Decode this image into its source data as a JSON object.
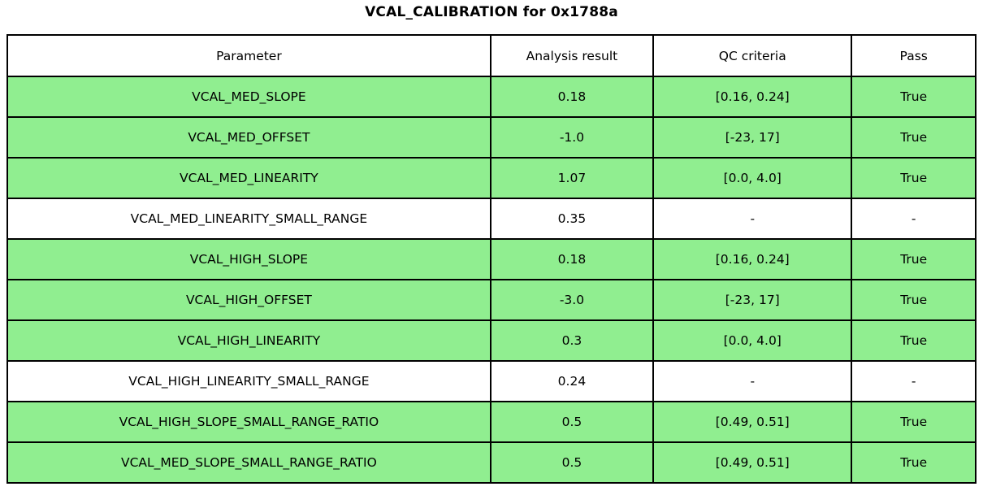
{
  "title": "VCAL_CALIBRATION for 0x1788a",
  "colors": {
    "pass_row_background": "#90EE90",
    "plain_row_background": "#FFFFFF",
    "border": "#000000",
    "text": "#000000"
  },
  "chart_data": {
    "type": "table",
    "title": "VCAL_CALIBRATION for 0x1788a",
    "columns": [
      "Parameter",
      "Analysis result",
      "QC criteria",
      "Pass"
    ],
    "rows": [
      {
        "parameter": "VCAL_MED_SLOPE",
        "analysis_result": "0.18",
        "qc_criteria": "[0.16, 0.24]",
        "pass": "True",
        "highlighted": true
      },
      {
        "parameter": "VCAL_MED_OFFSET",
        "analysis_result": "-1.0",
        "qc_criteria": "[-23, 17]",
        "pass": "True",
        "highlighted": true
      },
      {
        "parameter": "VCAL_MED_LINEARITY",
        "analysis_result": "1.07",
        "qc_criteria": "[0.0, 4.0]",
        "pass": "True",
        "highlighted": true
      },
      {
        "parameter": "VCAL_MED_LINEARITY_SMALL_RANGE",
        "analysis_result": "0.35",
        "qc_criteria": "-",
        "pass": "-",
        "highlighted": false
      },
      {
        "parameter": "VCAL_HIGH_SLOPE",
        "analysis_result": "0.18",
        "qc_criteria": "[0.16, 0.24]",
        "pass": "True",
        "highlighted": true
      },
      {
        "parameter": "VCAL_HIGH_OFFSET",
        "analysis_result": "-3.0",
        "qc_criteria": "[-23, 17]",
        "pass": "True",
        "highlighted": true
      },
      {
        "parameter": "VCAL_HIGH_LINEARITY",
        "analysis_result": "0.3",
        "qc_criteria": "[0.0, 4.0]",
        "pass": "True",
        "highlighted": true
      },
      {
        "parameter": "VCAL_HIGH_LINEARITY_SMALL_RANGE",
        "analysis_result": "0.24",
        "qc_criteria": "-",
        "pass": "-",
        "highlighted": false
      },
      {
        "parameter": "VCAL_HIGH_SLOPE_SMALL_RANGE_RATIO",
        "analysis_result": "0.5",
        "qc_criteria": "[0.49, 0.51]",
        "pass": "True",
        "highlighted": true
      },
      {
        "parameter": "VCAL_MED_SLOPE_SMALL_RANGE_RATIO",
        "analysis_result": "0.5",
        "qc_criteria": "[0.49, 0.51]",
        "pass": "True",
        "highlighted": true
      }
    ],
    "layout": {
      "highlight_meaning": "row passed QC",
      "grid": true,
      "legend": "none"
    }
  }
}
